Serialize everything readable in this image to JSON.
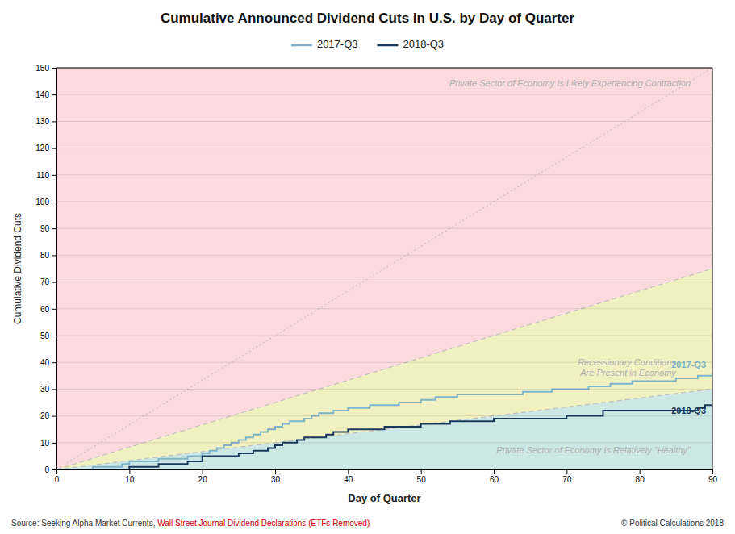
{
  "chart_data": {
    "type": "step",
    "title": "Cumulative Announced Dividend Cuts in U.S. by Day of Quarter",
    "xlabel": "Day of Quarter",
    "ylabel": "Cumulative Dividend Cuts",
    "xlim": [
      0,
      90
    ],
    "ylim": [
      0,
      150
    ],
    "xticks": [
      0,
      10,
      20,
      30,
      40,
      50,
      60,
      70,
      80,
      90
    ],
    "yticks": [
      0,
      10,
      20,
      30,
      40,
      50,
      60,
      70,
      80,
      90,
      100,
      110,
      120,
      130,
      140,
      150
    ],
    "grid": "y",
    "legend": "top",
    "boundaries": [
      {
        "slope": 0.3333,
        "color": "#bbbbbb",
        "line_style": "dashed"
      },
      {
        "slope": 0.8333,
        "color": "#bbbbbb",
        "line_style": "dashed"
      },
      {
        "slope": 1.6667,
        "color": "#bbbbbb",
        "line_style": "dotted"
      }
    ],
    "zones": [
      {
        "color": "#cce8e4"
      },
      {
        "color": "#f0f0c0"
      },
      {
        "color": "#fadadd"
      }
    ],
    "annotations": [
      {
        "text": "Private Sector of Economy Is Relatively \"Healthy\"",
        "x": 87,
        "y": 6,
        "color": "#b0b0b0"
      },
      {
        "text": "Recessionary Conditions",
        "x": 85,
        "y": 39,
        "color": "#b0b0b0"
      },
      {
        "text": "Are Present in Economy",
        "x": 85,
        "y": 35,
        "color": "#b0b0b0"
      },
      {
        "text": "Private Sector of Economy Is Likely Experiencing Contraction",
        "x": 87,
        "y": 143,
        "color": "#b0b0b0"
      }
    ],
    "series": [
      {
        "name": "2017-Q3",
        "color": "#7fb3c8",
        "x": [
          0,
          1,
          2,
          3,
          4,
          5,
          6,
          7,
          8,
          9,
          10,
          11,
          12,
          13,
          14,
          15,
          16,
          17,
          18,
          19,
          20,
          21,
          22,
          23,
          24,
          25,
          26,
          27,
          28,
          29,
          30,
          31,
          32,
          33,
          34,
          35,
          36,
          37,
          38,
          39,
          40,
          41,
          42,
          43,
          44,
          45,
          46,
          47,
          48,
          49,
          50,
          51,
          52,
          53,
          54,
          55,
          56,
          57,
          58,
          59,
          60,
          61,
          62,
          63,
          64,
          65,
          66,
          67,
          68,
          69,
          70,
          71,
          72,
          73,
          74,
          75,
          76,
          77,
          78,
          79,
          80,
          81,
          82,
          83,
          84,
          85,
          86,
          87,
          88,
          89,
          90
        ],
        "values": [
          0,
          0,
          0,
          0,
          0,
          1,
          1,
          1,
          1,
          2,
          3,
          3,
          3,
          3,
          4,
          4,
          4,
          4,
          5,
          5,
          6,
          7,
          8,
          9,
          10,
          11,
          12,
          13,
          14,
          15,
          16,
          17,
          18,
          18,
          19,
          20,
          21,
          21,
          22,
          22,
          23,
          23,
          23,
          24,
          24,
          24,
          24,
          25,
          25,
          25,
          26,
          26,
          27,
          27,
          27,
          28,
          28,
          28,
          28,
          28,
          28,
          28,
          28,
          28,
          29,
          29,
          29,
          29,
          30,
          30,
          30,
          30,
          30,
          31,
          31,
          31,
          32,
          32,
          32,
          33,
          33,
          33,
          33,
          33,
          33,
          34,
          34,
          34,
          35,
          35,
          36
        ]
      },
      {
        "name": "2018-Q3",
        "color": "#1a3a5c",
        "x": [
          0,
          1,
          2,
          3,
          4,
          5,
          6,
          7,
          8,
          9,
          10,
          11,
          12,
          13,
          14,
          15,
          16,
          17,
          18,
          19,
          20,
          21,
          22,
          23,
          24,
          25,
          26,
          27,
          28,
          29,
          30,
          31,
          32,
          33,
          34,
          35,
          36,
          37,
          38,
          39,
          40,
          41,
          42,
          43,
          44,
          45,
          46,
          47,
          48,
          49,
          50,
          51,
          52,
          53,
          54,
          55,
          56,
          57,
          58,
          59,
          60,
          61,
          62,
          63,
          64,
          65,
          66,
          67,
          68,
          69,
          70,
          71,
          72,
          73,
          74,
          75,
          76,
          77,
          78,
          79,
          80,
          81,
          82,
          83,
          84,
          85,
          86,
          87,
          88,
          89,
          90
        ],
        "values": [
          0,
          0,
          0,
          0,
          0,
          0,
          0,
          0,
          0,
          0,
          1,
          1,
          1,
          1,
          2,
          2,
          2,
          2,
          3,
          3,
          5,
          5,
          5,
          5,
          5,
          6,
          6,
          7,
          7,
          8,
          9,
          10,
          10,
          11,
          12,
          12,
          12,
          13,
          14,
          14,
          15,
          15,
          15,
          15,
          15,
          16,
          16,
          16,
          16,
          16,
          17,
          17,
          17,
          17,
          18,
          18,
          18,
          18,
          18,
          18,
          19,
          19,
          19,
          19,
          19,
          19,
          19,
          19,
          19,
          19,
          20,
          20,
          20,
          20,
          20,
          22,
          22,
          22,
          22,
          22,
          22,
          22,
          22,
          22,
          22,
          22,
          22,
          22,
          23,
          24,
          25
        ]
      }
    ],
    "source": [
      {
        "text": "Source: Seeking Alpha Market Currents, ",
        "color": "#333333"
      },
      {
        "text": "Wall Street Journal Dividend Declarations (ETFs Removed)",
        "color": "#cc0000"
      }
    ],
    "copyright": {
      "text": "© Political Calculations 2018",
      "color": "#333333"
    }
  }
}
